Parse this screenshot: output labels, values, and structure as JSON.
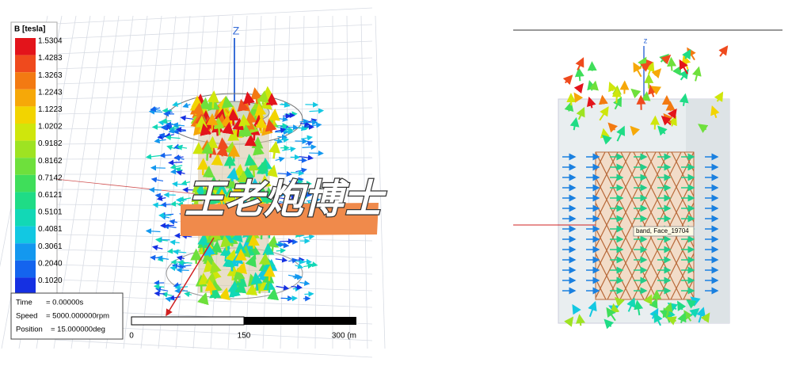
{
  "left_panel": {
    "axis_label": "Z",
    "legend": {
      "title": "B [tesla]",
      "levels": [
        {
          "label": "1.5304",
          "color": "#e3141b"
        },
        {
          "label": "1.4283",
          "color": "#ef4a1d"
        },
        {
          "label": "1.3263",
          "color": "#f37a12"
        },
        {
          "label": "1.2243",
          "color": "#f6a808"
        },
        {
          "label": "1.1223",
          "color": "#f2d400"
        },
        {
          "label": "1.0202",
          "color": "#cfe60c"
        },
        {
          "label": "0.9182",
          "color": "#9ee322"
        },
        {
          "label": "0.8162",
          "color": "#6ee03c"
        },
        {
          "label": "0.7142",
          "color": "#3fde5a"
        },
        {
          "label": "0.6121",
          "color": "#1fdc86"
        },
        {
          "label": "0.5101",
          "color": "#12d8b6"
        },
        {
          "label": "0.4081",
          "color": "#12c8e2"
        },
        {
          "label": "0.3061",
          "color": "#1398ef"
        },
        {
          "label": "0.2040",
          "color": "#1464ee"
        },
        {
          "label": "0.1020",
          "color": "#1530e2"
        }
      ]
    },
    "info": {
      "rows": [
        [
          "Time",
          "= 0.00000s"
        ],
        [
          "Speed",
          "= 5000.000000rpm"
        ],
        [
          "Position",
          "= 15.000000deg"
        ]
      ]
    },
    "scale": {
      "labels": [
        "0",
        "150",
        "300 (m"
      ]
    }
  },
  "watermark": "王老炮博士",
  "right_panel": {
    "axis_label": "z",
    "tooltip": "band, Face_19704"
  }
}
